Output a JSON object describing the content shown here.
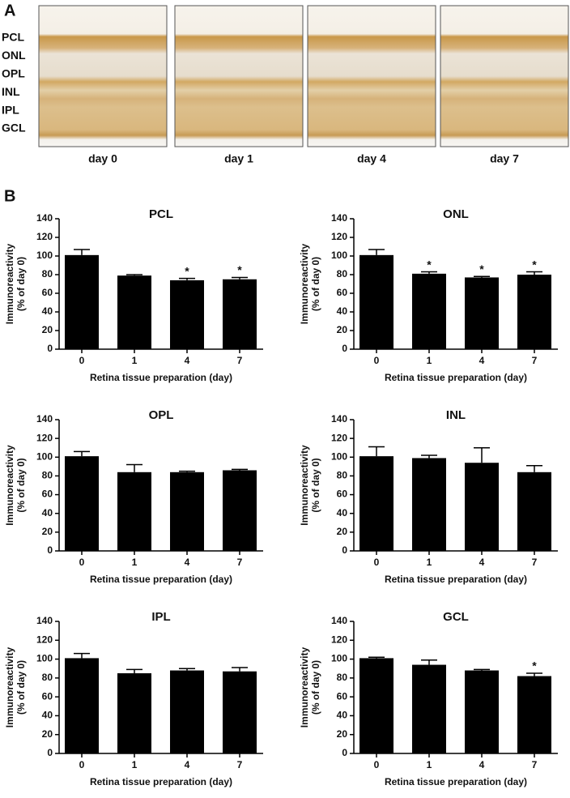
{
  "panel_a": {
    "label": "A",
    "layers": [
      "PCL",
      "ONL",
      "OPL",
      "INL",
      "IPL",
      "GCL"
    ],
    "images": [
      "day 0",
      "day 1",
      "day 4",
      "day 7"
    ]
  },
  "panel_b": {
    "label": "B"
  },
  "chart_data": [
    {
      "type": "bar",
      "title": "PCL",
      "ylabel": [
        "Immunoreactivity",
        "(% of day 0)"
      ],
      "xlabel": "Retina tissue preparation (day)",
      "categories": [
        "0",
        "1",
        "4",
        "7"
      ],
      "values": [
        101,
        79,
        74,
        75
      ],
      "errors": [
        6,
        1,
        2,
        2
      ],
      "color": "#000000",
      "ylim": [
        0,
        140
      ],
      "yticks": [
        0,
        20,
        40,
        60,
        80,
        100,
        120,
        140
      ],
      "annotations": [
        {
          "x": "4",
          "text": "*"
        },
        {
          "x": "7",
          "text": "*"
        }
      ]
    },
    {
      "type": "bar",
      "title": "ONL",
      "ylabel": [
        "Immunoreactivity",
        "(% of day 0)"
      ],
      "xlabel": "Retina tissue preparation (day)",
      "categories": [
        "0",
        "1",
        "4",
        "7"
      ],
      "values": [
        101,
        81,
        77,
        80
      ],
      "errors": [
        6,
        2,
        1,
        3
      ],
      "color": "#000000",
      "ylim": [
        0,
        140
      ],
      "yticks": [
        0,
        20,
        40,
        60,
        80,
        100,
        120,
        140
      ],
      "annotations": [
        {
          "x": "1",
          "text": "*"
        },
        {
          "x": "4",
          "text": "*"
        },
        {
          "x": "7",
          "text": "*"
        }
      ]
    },
    {
      "type": "bar",
      "title": "OPL",
      "ylabel": [
        "Immunoreactivity",
        "(% of day 0)"
      ],
      "xlabel": "Retina tissue preparation (day)",
      "categories": [
        "0",
        "1",
        "4",
        "7"
      ],
      "values": [
        101,
        84,
        84,
        86
      ],
      "errors": [
        5,
        8,
        1,
        1
      ],
      "color": "#000000",
      "ylim": [
        0,
        140
      ],
      "yticks": [
        0,
        20,
        40,
        60,
        80,
        100,
        120,
        140
      ]
    },
    {
      "type": "bar",
      "title": "INL",
      "ylabel": [
        "Immunoreactivity",
        "(% of day 0)"
      ],
      "xlabel": "Retina tissue preparation (day)",
      "categories": [
        "0",
        "1",
        "4",
        "7"
      ],
      "values": [
        101,
        99,
        94,
        84
      ],
      "errors": [
        10,
        3,
        16,
        7
      ],
      "color": "#000000",
      "ylim": [
        0,
        140
      ],
      "yticks": [
        0,
        20,
        40,
        60,
        80,
        100,
        120,
        140
      ]
    },
    {
      "type": "bar",
      "title": "IPL",
      "ylabel": [
        "Immunoreactivity",
        "(% of day 0)"
      ],
      "xlabel": "Retina tissue preparation (day)",
      "categories": [
        "0",
        "1",
        "4",
        "7"
      ],
      "values": [
        101,
        85,
        88,
        87
      ],
      "errors": [
        5,
        4,
        2,
        4
      ],
      "color": "#000000",
      "ylim": [
        0,
        140
      ],
      "yticks": [
        0,
        20,
        40,
        60,
        80,
        100,
        120,
        140
      ]
    },
    {
      "type": "bar",
      "title": "GCL",
      "ylabel": [
        "Immunoreactivity",
        "(% of day 0)"
      ],
      "xlabel": "Retina tissue preparation (day)",
      "categories": [
        "0",
        "1",
        "4",
        "7"
      ],
      "values": [
        101,
        94,
        88,
        82
      ],
      "errors": [
        1,
        5,
        1,
        3
      ],
      "color": "#000000",
      "ylim": [
        0,
        140
      ],
      "yticks": [
        0,
        20,
        40,
        60,
        80,
        100,
        120,
        140
      ],
      "annotations": [
        {
          "x": "7",
          "text": "*"
        }
      ]
    }
  ]
}
